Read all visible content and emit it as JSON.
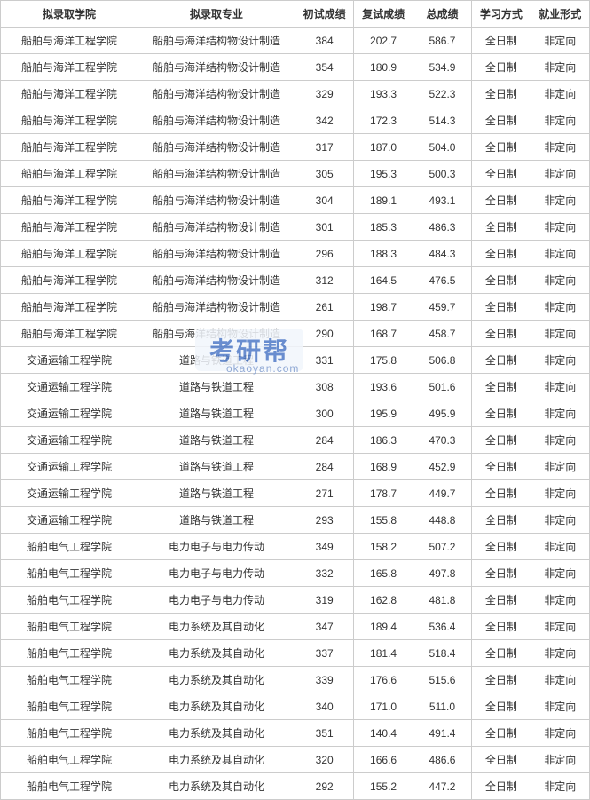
{
  "table": {
    "columns": [
      {
        "label": "拟录取学院",
        "width": 140
      },
      {
        "label": "拟录取专业",
        "width": 160
      },
      {
        "label": "初试成绩",
        "width": 60
      },
      {
        "label": "复试成绩",
        "width": 60
      },
      {
        "label": "总成绩",
        "width": 60
      },
      {
        "label": "学习方式",
        "width": 60
      },
      {
        "label": "就业形式",
        "width": 60
      }
    ],
    "rows": [
      [
        "船舶与海洋工程学院",
        "船舶与海洋结构物设计制造",
        "384",
        "202.7",
        "586.7",
        "全日制",
        "非定向"
      ],
      [
        "船舶与海洋工程学院",
        "船舶与海洋结构物设计制造",
        "354",
        "180.9",
        "534.9",
        "全日制",
        "非定向"
      ],
      [
        "船舶与海洋工程学院",
        "船舶与海洋结构物设计制造",
        "329",
        "193.3",
        "522.3",
        "全日制",
        "非定向"
      ],
      [
        "船舶与海洋工程学院",
        "船舶与海洋结构物设计制造",
        "342",
        "172.3",
        "514.3",
        "全日制",
        "非定向"
      ],
      [
        "船舶与海洋工程学院",
        "船舶与海洋结构物设计制造",
        "317",
        "187.0",
        "504.0",
        "全日制",
        "非定向"
      ],
      [
        "船舶与海洋工程学院",
        "船舶与海洋结构物设计制造",
        "305",
        "195.3",
        "500.3",
        "全日制",
        "非定向"
      ],
      [
        "船舶与海洋工程学院",
        "船舶与海洋结构物设计制造",
        "304",
        "189.1",
        "493.1",
        "全日制",
        "非定向"
      ],
      [
        "船舶与海洋工程学院",
        "船舶与海洋结构物设计制造",
        "301",
        "185.3",
        "486.3",
        "全日制",
        "非定向"
      ],
      [
        "船舶与海洋工程学院",
        "船舶与海洋结构物设计制造",
        "296",
        "188.3",
        "484.3",
        "全日制",
        "非定向"
      ],
      [
        "船舶与海洋工程学院",
        "船舶与海洋结构物设计制造",
        "312",
        "164.5",
        "476.5",
        "全日制",
        "非定向"
      ],
      [
        "船舶与海洋工程学院",
        "船舶与海洋结构物设计制造",
        "261",
        "198.7",
        "459.7",
        "全日制",
        "非定向"
      ],
      [
        "船舶与海洋工程学院",
        "船舶与海洋结构物设计制造",
        "290",
        "168.7",
        "458.7",
        "全日制",
        "非定向"
      ],
      [
        "交通运输工程学院",
        "道路与铁道工程",
        "331",
        "175.8",
        "506.8",
        "全日制",
        "非定向"
      ],
      [
        "交通运输工程学院",
        "道路与铁道工程",
        "308",
        "193.6",
        "501.6",
        "全日制",
        "非定向"
      ],
      [
        "交通运输工程学院",
        "道路与铁道工程",
        "300",
        "195.9",
        "495.9",
        "全日制",
        "非定向"
      ],
      [
        "交通运输工程学院",
        "道路与铁道工程",
        "284",
        "186.3",
        "470.3",
        "全日制",
        "非定向"
      ],
      [
        "交通运输工程学院",
        "道路与铁道工程",
        "284",
        "168.9",
        "452.9",
        "全日制",
        "非定向"
      ],
      [
        "交通运输工程学院",
        "道路与铁道工程",
        "271",
        "178.7",
        "449.7",
        "全日制",
        "非定向"
      ],
      [
        "交通运输工程学院",
        "道路与铁道工程",
        "293",
        "155.8",
        "448.8",
        "全日制",
        "非定向"
      ],
      [
        "船舶电气工程学院",
        "电力电子与电力传动",
        "349",
        "158.2",
        "507.2",
        "全日制",
        "非定向"
      ],
      [
        "船舶电气工程学院",
        "电力电子与电力传动",
        "332",
        "165.8",
        "497.8",
        "全日制",
        "非定向"
      ],
      [
        "船舶电气工程学院",
        "电力电子与电力传动",
        "319",
        "162.8",
        "481.8",
        "全日制",
        "非定向"
      ],
      [
        "船舶电气工程学院",
        "电力系统及其自动化",
        "347",
        "189.4",
        "536.4",
        "全日制",
        "非定向"
      ],
      [
        "船舶电气工程学院",
        "电力系统及其自动化",
        "337",
        "181.4",
        "518.4",
        "全日制",
        "非定向"
      ],
      [
        "船舶电气工程学院",
        "电力系统及其自动化",
        "339",
        "176.6",
        "515.6",
        "全日制",
        "非定向"
      ],
      [
        "船舶电气工程学院",
        "电力系统及其自动化",
        "340",
        "171.0",
        "511.0",
        "全日制",
        "非定向"
      ],
      [
        "船舶电气工程学院",
        "电力系统及其自动化",
        "351",
        "140.4",
        "491.4",
        "全日制",
        "非定向"
      ],
      [
        "船舶电气工程学院",
        "电力系统及其自动化",
        "320",
        "166.6",
        "486.6",
        "全日制",
        "非定向"
      ],
      [
        "船舶电气工程学院",
        "电力系统及其自动化",
        "292",
        "155.2",
        "447.2",
        "全日制",
        "非定向"
      ]
    ],
    "border_color": "#cccccc",
    "background_color": "#ffffff",
    "text_color": "#333333",
    "font_size": 12,
    "header_font_weight": "bold"
  },
  "watermark": {
    "text": "考研帮",
    "sub_text": "okaoyan.com",
    "color": "#4f7ac7",
    "sub_color": "#8fa8d4",
    "bg_color": "#f2f6fc"
  }
}
